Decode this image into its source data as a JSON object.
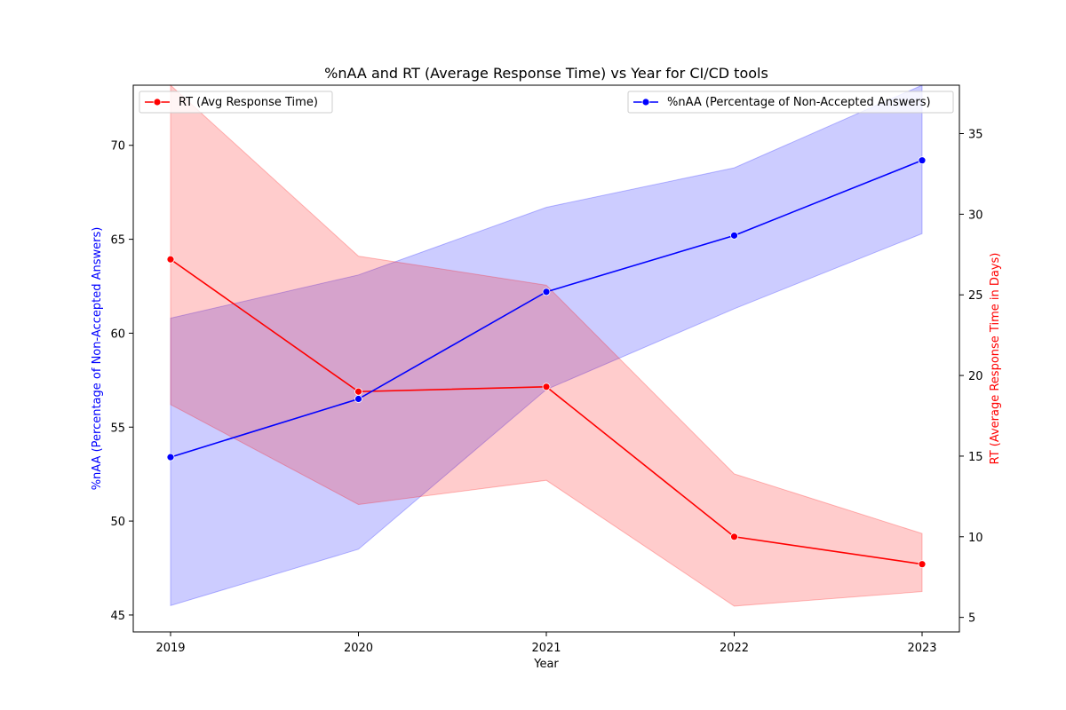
{
  "chart_data": {
    "type": "line",
    "title": "%nAA and RT (Average Response Time) vs Year for CI/CD tools",
    "xlabel": "Year",
    "x": [
      "2019",
      "2020",
      "2021",
      "2022",
      "2023"
    ],
    "xticks": [
      "2019",
      "2020",
      "2021",
      "2022",
      "2023"
    ],
    "y_left": {
      "label": "%nAA (Percentage of Non-Accepted Answers)",
      "color": "#0000ff",
      "ylim": [
        44.1,
        73.2
      ],
      "ticks": [
        "45",
        "50",
        "55",
        "60",
        "65",
        "70"
      ]
    },
    "y_right": {
      "label": "RT (Average Response Time in Days)",
      "color": "#ff0000",
      "ylim": [
        4.1,
        38.0
      ],
      "ticks": [
        "5",
        "10",
        "15",
        "20",
        "25",
        "30",
        "35"
      ]
    },
    "series": [
      {
        "name": "%nAA (Percentage of Non-Accepted Answers)",
        "axis": "left",
        "color": "#0000ff",
        "band_color": "#0000ff",
        "values": [
          53.4,
          56.5,
          62.2,
          65.2,
          69.2
        ],
        "ci_low": [
          45.5,
          48.5,
          57.0,
          61.3,
          65.3
        ],
        "ci_high": [
          60.8,
          63.1,
          66.7,
          68.8,
          73.2
        ]
      },
      {
        "name": "RT (Avg Response Time)",
        "axis": "right",
        "color": "#ff0000",
        "band_color": "#ff0000",
        "values": [
          27.2,
          19.0,
          19.3,
          10.0,
          8.3
        ],
        "ci_low": [
          18.2,
          12.0,
          13.5,
          5.7,
          6.6
        ],
        "ci_high": [
          38.0,
          27.4,
          25.6,
          13.9,
          10.2
        ]
      }
    ],
    "legends": [
      {
        "label": "RT (Avg Response Time)",
        "placement": "upper-left",
        "series": 1
      },
      {
        "label": "%nAA (Percentage of Non-Accepted Answers)",
        "placement": "upper-right",
        "series": 0
      }
    ],
    "grid": false
  }
}
